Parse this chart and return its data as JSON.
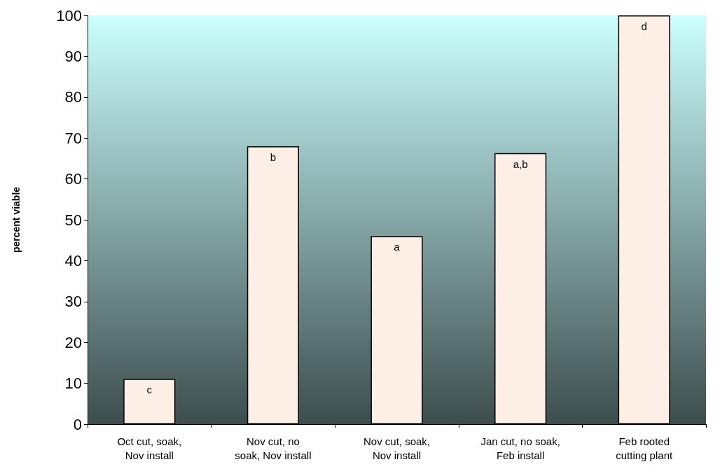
{
  "chart_data": {
    "type": "bar",
    "ylabel": "percent viable",
    "categories": [
      "Oct cut, soak,\nNov install",
      "Nov cut, no\nsoak, Nov install",
      "Nov cut, soak,\nNov install",
      "Jan cut, no soak,\nFeb install",
      "Feb rooted\ncutting plant"
    ],
    "values": [
      11.1,
      68,
      46,
      66.3,
      100
    ],
    "color": "#fdeee6",
    "ylim": [
      0,
      100
    ],
    "yticks": [
      0,
      10,
      20,
      30,
      40,
      50,
      60,
      70,
      80,
      90,
      100
    ],
    "grid": false,
    "annotations": [
      {
        "text": "c",
        "x": "Oct cut, soak,\nNov install",
        "y": 11.1
      },
      {
        "text": "b",
        "x": "Nov cut, no\nsoak, Nov install",
        "y": 68
      },
      {
        "text": "a",
        "x": "Nov cut, soak,\nNov install",
        "y": 46
      },
      {
        "text": "a,b",
        "x": "Jan cut, no soak,\nFeb install",
        "y": 66.3
      },
      {
        "text": "d",
        "x": "Feb rooted\ncutting plant",
        "y": 100
      }
    ]
  }
}
